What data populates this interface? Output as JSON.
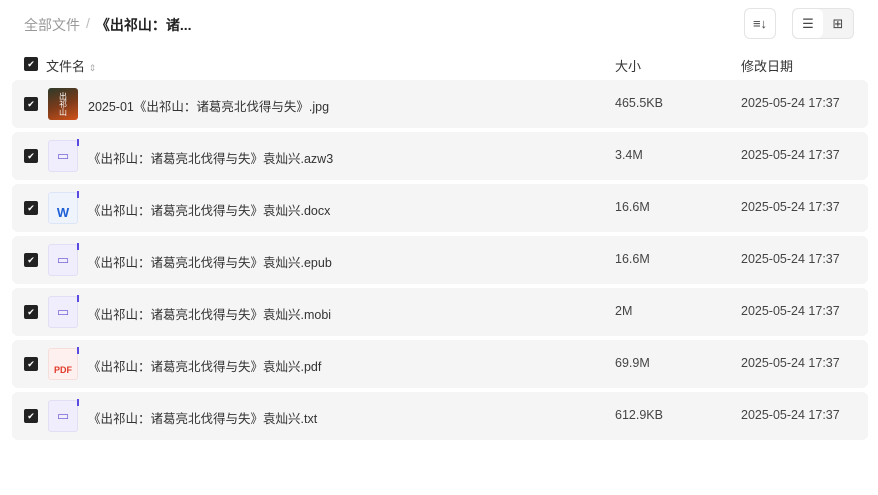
{
  "breadcrumb": {
    "root": "全部文件",
    "separator": "/",
    "current": "《出祁山：诸..."
  },
  "toolbar": {
    "sort_icon": "sort-icon",
    "list_icon": "list-view-icon",
    "grid_icon": "grid-view-icon"
  },
  "header": {
    "name": "文件名",
    "size": "大小",
    "date": "修改日期"
  },
  "files": [
    {
      "name": "2025-01《出祁山：诸葛亮北伐得与失》.jpg",
      "size": "465.5KB",
      "date": "2025-05-24 17:37",
      "type": "img"
    },
    {
      "name": "《出祁山：诸葛亮北伐得与失》袁灿兴.azw3",
      "size": "3.4M",
      "date": "2025-05-24 17:37",
      "type": "book"
    },
    {
      "name": "《出祁山：诸葛亮北伐得与失》袁灿兴.docx",
      "size": "16.6M",
      "date": "2025-05-24 17:37",
      "type": "doc"
    },
    {
      "name": "《出祁山：诸葛亮北伐得与失》袁灿兴.epub",
      "size": "16.6M",
      "date": "2025-05-24 17:37",
      "type": "book"
    },
    {
      "name": "《出祁山：诸葛亮北伐得与失》袁灿兴.mobi",
      "size": "2M",
      "date": "2025-05-24 17:37",
      "type": "book"
    },
    {
      "name": "《出祁山：诸葛亮北伐得与失》袁灿兴.pdf",
      "size": "69.9M",
      "date": "2025-05-24 17:37",
      "type": "pdf"
    },
    {
      "name": "《出祁山：诸葛亮北伐得与失》袁灿兴.txt",
      "size": "612.9KB",
      "date": "2025-05-24 17:37",
      "type": "book"
    }
  ],
  "icon_labels": {
    "doc": "W",
    "pdf": "PDF",
    "img": "出祁山"
  }
}
